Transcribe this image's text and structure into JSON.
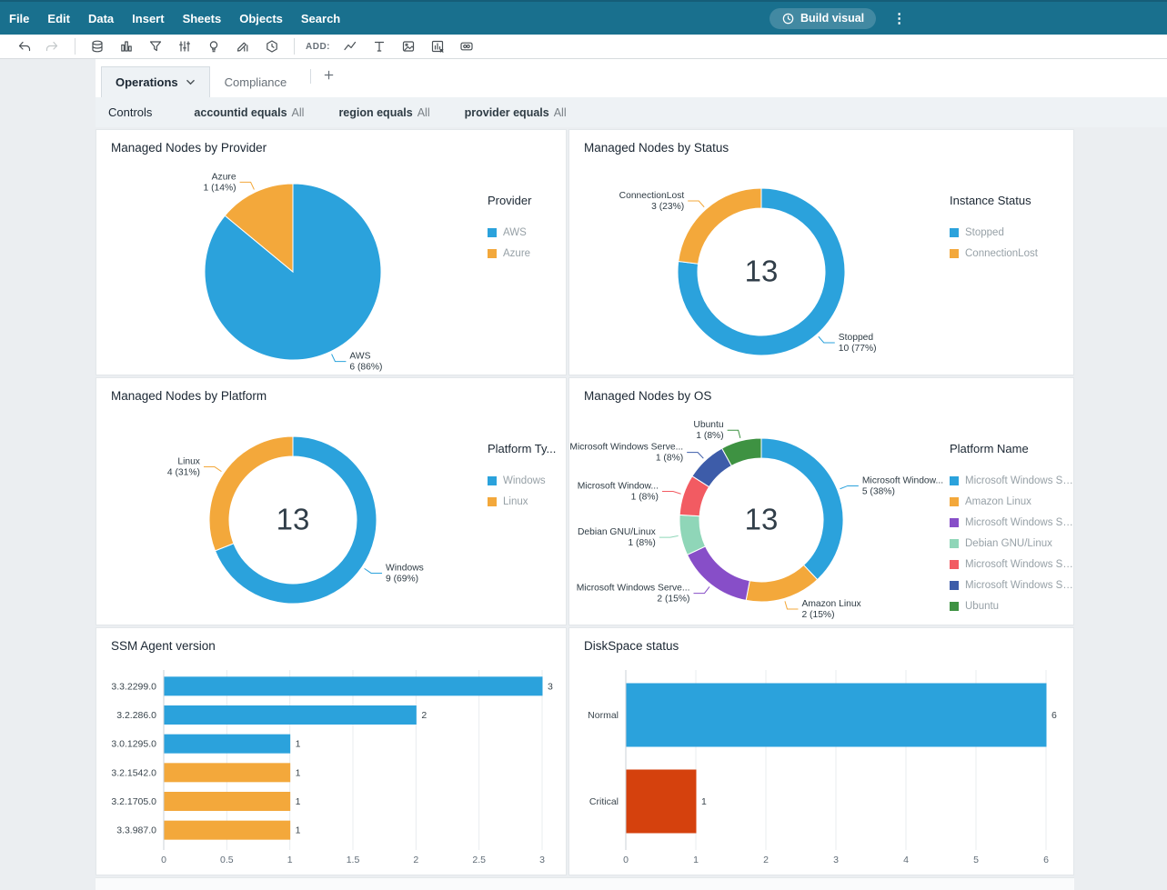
{
  "header": {
    "menu_items": [
      "File",
      "Edit",
      "Data",
      "Insert",
      "Sheets",
      "Objects",
      "Search"
    ],
    "build_visual_label": "Build visual"
  },
  "toolbar": {
    "add_label": "ADD:",
    "icons": [
      "undo-icon",
      "redo-icon",
      "divider",
      "dataset-icon",
      "visual-types-icon",
      "filter-icon",
      "parameters-icon",
      "insights-icon",
      "pencil-chart-icon",
      "themes-icon",
      "divider",
      "add-label",
      "line-chart-icon",
      "text-icon",
      "image-icon",
      "insert-visual-icon",
      "embed-icon"
    ]
  },
  "tabs": {
    "items": [
      {
        "label": "Operations",
        "selected": true
      },
      {
        "label": "Compliance",
        "selected": false
      }
    ]
  },
  "controls": {
    "label": "Controls",
    "filters": [
      {
        "field": "accountid",
        "operator": "equals",
        "value": "All"
      },
      {
        "field": "region",
        "operator": "equals",
        "value": "All"
      },
      {
        "field": "provider",
        "operator": "equals",
        "value": "All"
      }
    ]
  },
  "colors": {
    "accent_blue": "#2BA2DC",
    "accent_amber": "#F3A83B",
    "critical_red": "#D5410D",
    "header_teal": "#19708E"
  },
  "chart_data": [
    {
      "id": "provider",
      "type": "pie",
      "title": "Managed Nodes by Provider",
      "legend_title": "Provider",
      "segments": [
        {
          "label": "AWS",
          "legend_label": "AWS",
          "value": 6,
          "pct": 86,
          "color": "#2BA2DC"
        },
        {
          "label": "Azure",
          "legend_label": "Azure",
          "value": 1,
          "pct": 14,
          "color": "#F3A83B"
        }
      ]
    },
    {
      "id": "status",
      "type": "donut",
      "title": "Managed Nodes by Status",
      "legend_title": "Instance Status",
      "center_value": "13",
      "segments": [
        {
          "label": "Stopped",
          "legend_label": "Stopped",
          "value": 10,
          "pct": 77,
          "color": "#2BA2DC"
        },
        {
          "label": "ConnectionLost",
          "legend_label": "ConnectionLost",
          "value": 3,
          "pct": 23,
          "color": "#F3A83B"
        }
      ]
    },
    {
      "id": "platform",
      "type": "donut",
      "title": "Managed Nodes by Platform",
      "legend_title": "Platform Ty...",
      "center_value": "13",
      "segments": [
        {
          "label": "Windows",
          "legend_label": "Windows",
          "value": 9,
          "pct": 69,
          "color": "#2BA2DC"
        },
        {
          "label": "Linux",
          "legend_label": "Linux",
          "value": 4,
          "pct": 31,
          "color": "#F3A83B"
        }
      ]
    },
    {
      "id": "os",
      "type": "donut",
      "title": "Managed Nodes by OS",
      "legend_title": "Platform Name",
      "center_value": "13",
      "segments": [
        {
          "label": "Microsoft Window...",
          "legend_label": "Microsoft Windows Se...",
          "value": 5,
          "pct": 38,
          "color": "#2BA2DC"
        },
        {
          "label": "Amazon Linux",
          "legend_label": "Amazon Linux",
          "value": 2,
          "pct": 15,
          "color": "#F3A83B"
        },
        {
          "label": "Microsoft Windows Serve...",
          "legend_label": "Microsoft Windows Se...",
          "value": 2,
          "pct": 15,
          "color": "#874EC8"
        },
        {
          "label": "Debian GNU/Linux",
          "legend_label": "Debian GNU/Linux",
          "value": 1,
          "pct": 8,
          "color": "#8FD6B8"
        },
        {
          "label": "Microsoft Window...",
          "legend_label": "Microsoft Windows Se...",
          "value": 1,
          "pct": 8,
          "color": "#F25B62"
        },
        {
          "label": "Microsoft Windows Serve...",
          "legend_label": "Microsoft Windows Se...",
          "value": 1,
          "pct": 8,
          "color": "#3D5CA9"
        },
        {
          "label": "Ubuntu",
          "legend_label": "Ubuntu",
          "value": 1,
          "pct": 8,
          "color": "#3E9242"
        }
      ]
    },
    {
      "id": "ssm",
      "type": "bar",
      "orientation": "horizontal",
      "title": "SSM Agent version",
      "categories": [
        "3.3.2299.0",
        "3.2.286.0",
        "3.0.1295.0",
        "3.2.1542.0",
        "3.2.1705.0",
        "3.3.987.0"
      ],
      "values": [
        3,
        2,
        1,
        1,
        1,
        1
      ],
      "bar_colors": [
        "#2BA2DC",
        "#2BA2DC",
        "#2BA2DC",
        "#F3A83B",
        "#F3A83B",
        "#F3A83B"
      ],
      "xticks": [
        "0",
        "0.5",
        "1",
        "1.5",
        "2",
        "2.5",
        "3"
      ],
      "xtick_values": [
        0,
        0.5,
        1,
        1.5,
        2,
        2.5,
        3
      ],
      "xmax": 3
    },
    {
      "id": "disk",
      "type": "bar",
      "orientation": "horizontal",
      "title": "DiskSpace status",
      "categories": [
        "Normal",
        "Critical"
      ],
      "values": [
        6,
        1
      ],
      "bar_colors": [
        "#2BA2DC",
        "#D5410D"
      ],
      "xticks": [
        "0",
        "1",
        "2",
        "3",
        "4",
        "5",
        "6"
      ],
      "xtick_values": [
        0,
        1,
        2,
        3,
        4,
        5,
        6
      ],
      "xmax": 6
    }
  ]
}
